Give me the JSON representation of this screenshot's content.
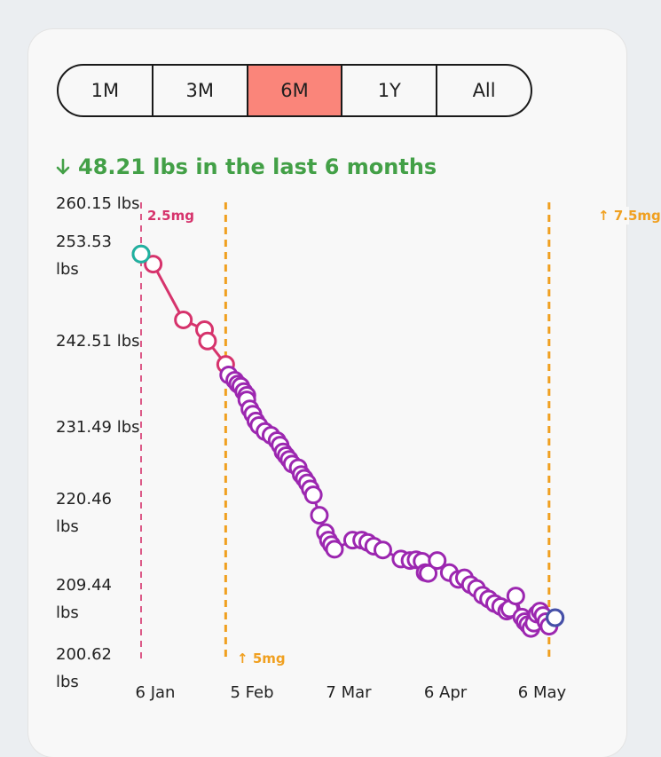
{
  "tabs": [
    {
      "label": "1M",
      "active": false
    },
    {
      "label": "3M",
      "active": false
    },
    {
      "label": "6M",
      "active": true
    },
    {
      "label": "1Y",
      "active": false
    },
    {
      "label": "All",
      "active": false
    }
  ],
  "summary": {
    "text": "48.21 lbs in the last 6 months",
    "color": "#43a047",
    "icon": "arrow-down-icon"
  },
  "chart_data": {
    "type": "line",
    "x_axis": {
      "ticks": [
        "6 Jan",
        "5 Feb",
        "7 Mar",
        "6 Apr",
        "6 May"
      ],
      "range": [
        "2025-01-06",
        "2025-05-23"
      ]
    },
    "y_axis": {
      "ticks": [
        "260.15 lbs",
        "253.53 lbs",
        "242.51 lbs",
        "231.49 lbs",
        "220.46 lbs",
        "209.44 lbs",
        "200.62 lbs"
      ],
      "range": [
        200.62,
        260.15
      ]
    },
    "grid": false,
    "dose_markers": [
      {
        "date": "2025-01-06",
        "label": "2.5mg",
        "style": "dashed",
        "color": "#d6336c",
        "label_position": "top"
      },
      {
        "date": "2025-02-03",
        "label": "5mg",
        "style": "dashed",
        "color": "#f0a020",
        "label_position": "bottom",
        "icon": "arrow-up-icon"
      },
      {
        "date": "2025-05-21",
        "label": "7.5mg",
        "style": "dashed",
        "color": "#f0a020",
        "label_position": "top",
        "icon": "arrow-up-icon"
      }
    ],
    "series": [
      {
        "color": "#d6336c",
        "values": [
          [
            "2025-01-06",
            253.53
          ],
          [
            "2025-01-10",
            252.2
          ],
          [
            "2025-01-20",
            244.8
          ],
          [
            "2025-01-27",
            243.5
          ],
          [
            "2025-01-28",
            242.0
          ],
          [
            "2025-02-03",
            238.9
          ]
        ]
      },
      {
        "color": "#9c27b0",
        "values": [
          [
            "2025-02-04",
            237.5
          ],
          [
            "2025-02-06",
            236.8
          ],
          [
            "2025-02-07",
            236.3
          ],
          [
            "2025-02-08",
            236.0
          ],
          [
            "2025-02-09",
            235.3
          ],
          [
            "2025-02-10",
            234.8
          ],
          [
            "2025-02-10",
            234.2
          ],
          [
            "2025-02-11",
            233.0
          ],
          [
            "2025-02-12",
            232.3
          ],
          [
            "2025-02-13",
            231.4
          ],
          [
            "2025-02-14",
            230.8
          ],
          [
            "2025-02-16",
            230.0
          ],
          [
            "2025-02-18",
            229.5
          ],
          [
            "2025-02-20",
            228.8
          ],
          [
            "2025-02-21",
            228.2
          ],
          [
            "2025-02-22",
            227.3
          ],
          [
            "2025-02-23",
            226.8
          ],
          [
            "2025-02-24",
            226.3
          ],
          [
            "2025-02-25",
            225.7
          ],
          [
            "2025-02-27",
            225.2
          ],
          [
            "2025-02-28",
            224.3
          ],
          [
            "2025-03-01",
            223.8
          ],
          [
            "2025-03-02",
            223.2
          ],
          [
            "2025-03-03",
            222.4
          ],
          [
            "2025-03-04",
            221.6
          ],
          [
            "2025-03-06",
            218.9
          ],
          [
            "2025-03-08",
            216.6
          ],
          [
            "2025-03-09",
            215.6
          ],
          [
            "2025-03-10",
            215.0
          ],
          [
            "2025-03-11",
            214.4
          ],
          [
            "2025-03-17",
            215.6
          ],
          [
            "2025-03-20",
            215.6
          ],
          [
            "2025-03-22",
            215.3
          ],
          [
            "2025-03-24",
            214.8
          ],
          [
            "2025-03-27",
            214.3
          ],
          [
            "2025-04-02",
            213.1
          ],
          [
            "2025-04-05",
            212.9
          ],
          [
            "2025-04-07",
            213.0
          ],
          [
            "2025-04-09",
            212.8
          ],
          [
            "2025-04-10",
            211.3
          ],
          [
            "2025-04-11",
            211.2
          ],
          [
            "2025-04-14",
            212.9
          ],
          [
            "2025-04-18",
            211.3
          ],
          [
            "2025-04-21",
            210.4
          ],
          [
            "2025-04-23",
            210.6
          ],
          [
            "2025-04-25",
            209.7
          ],
          [
            "2025-04-27",
            209.2
          ],
          [
            "2025-04-29",
            208.3
          ],
          [
            "2025-05-01",
            207.8
          ],
          [
            "2025-05-03",
            207.2
          ],
          [
            "2025-05-05",
            206.8
          ],
          [
            "2025-05-07",
            206.2
          ],
          [
            "2025-05-08",
            206.5
          ],
          [
            "2025-05-10",
            208.2
          ],
          [
            "2025-05-12",
            205.4
          ],
          [
            "2025-05-13",
            204.8
          ],
          [
            "2025-05-14",
            204.4
          ],
          [
            "2025-05-15",
            203.9
          ],
          [
            "2025-05-16",
            204.6
          ],
          [
            "2025-05-17",
            205.8
          ],
          [
            "2025-05-18",
            206.2
          ],
          [
            "2025-05-19",
            205.6
          ],
          [
            "2025-05-20",
            204.8
          ],
          [
            "2025-05-21",
            204.2
          ]
        ]
      }
    ],
    "first_point": {
      "date": "2025-01-06",
      "value": 253.53,
      "color": "#20b2a0"
    },
    "last_point": {
      "date": "2025-05-23",
      "value": 205.32,
      "color": "#4650a8"
    }
  }
}
